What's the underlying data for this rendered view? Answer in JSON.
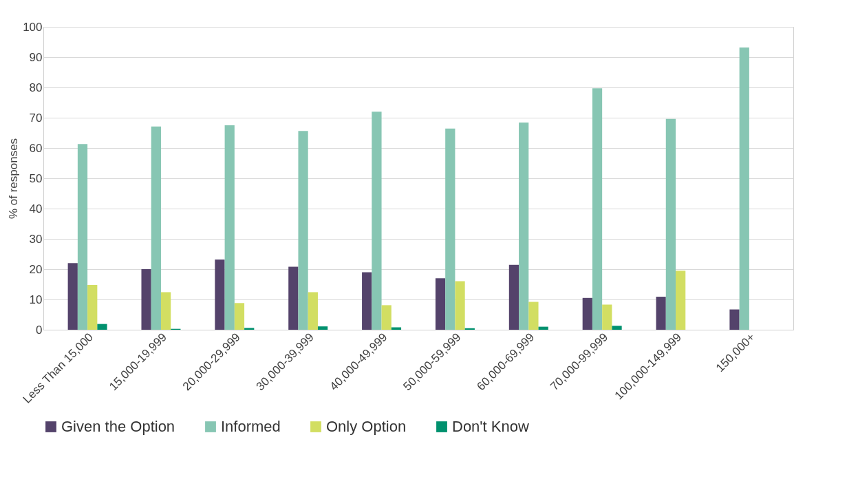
{
  "chart_data": {
    "type": "bar",
    "ylabel": "% of responses",
    "categories": [
      "Less Than 15,000",
      "15,000-19,999",
      "20,000-29,999",
      "30,000-39,999",
      "40,000-49,999",
      "50,000-59,999",
      "60,000-69,999",
      "70,000-99,999",
      "100,000-149,999",
      "150,000+"
    ],
    "series": [
      {
        "name": "Given the Option",
        "color": "#54436b",
        "values": [
          22.0,
          20.0,
          23.2,
          20.8,
          19.0,
          17.0,
          21.4,
          10.5,
          10.9,
          6.7
        ]
      },
      {
        "name": "Informed",
        "color": "#87c6b3",
        "values": [
          61.3,
          67.1,
          67.5,
          65.6,
          72.0,
          66.4,
          68.4,
          79.7,
          69.6,
          93.2
        ]
      },
      {
        "name": "Only Option",
        "color": "#d2de62",
        "values": [
          14.8,
          12.4,
          8.8,
          12.4,
          8.1,
          16.0,
          9.2,
          8.3,
          19.5,
          0
        ]
      },
      {
        "name": "Don't Know",
        "color": "#00916e",
        "values": [
          1.9,
          0.3,
          0.6,
          1.1,
          0.8,
          0.5,
          1.0,
          1.3,
          0,
          0
        ]
      }
    ],
    "ylim": [
      0,
      100
    ],
    "yticks": [
      0,
      10,
      20,
      30,
      40,
      50,
      60,
      70,
      80,
      90,
      100
    ],
    "grid": "y",
    "legend": "bottom"
  }
}
